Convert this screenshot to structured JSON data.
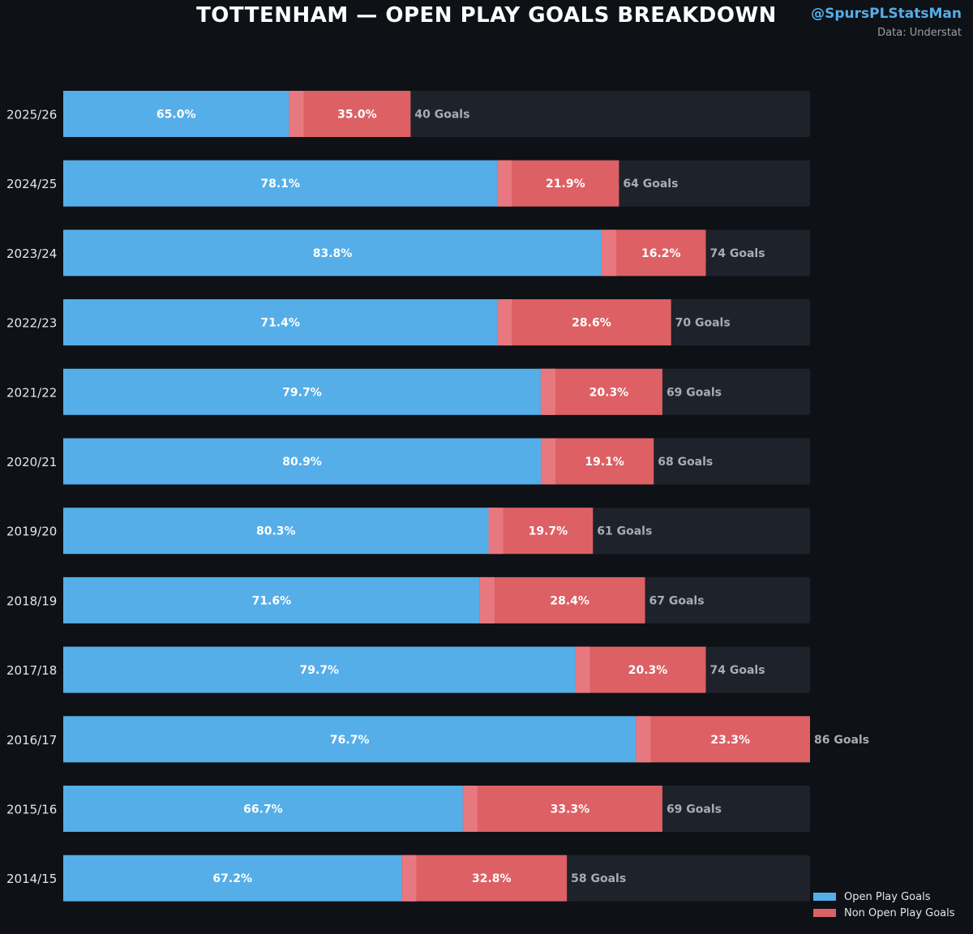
{
  "header": {
    "title": "TOTTENHAM — OPEN PLAY GOALS BREAKDOWN",
    "handle": "@SpursPLStatsMan",
    "source": "Data: Understat"
  },
  "colors": {
    "background": "#0e1116",
    "track": "#1e222b",
    "open_play": "#55aee8",
    "non_open_play": "#dd6064",
    "seam": "#e77880",
    "goals_label": "#a8acb3"
  },
  "legend": {
    "position": "bottom-right",
    "items": [
      {
        "label": "Open Play Goals",
        "color": "#55aee8"
      },
      {
        "label": "Non Open Play Goals",
        "color": "#dd6064"
      }
    ]
  },
  "chart_data": {
    "type": "bar",
    "orientation": "horizontal",
    "stacked": true,
    "title": "TOTTENHAM — OPEN PLAY GOALS BREAKDOWN",
    "categories": [
      "2025/26",
      "2024/25",
      "2023/24",
      "2022/23",
      "2021/22",
      "2020/21",
      "2019/20",
      "2018/19",
      "2017/18",
      "2016/17",
      "2015/16",
      "2014/15"
    ],
    "totals": [
      40,
      64,
      74,
      70,
      69,
      68,
      61,
      67,
      74,
      86,
      69,
      58
    ],
    "total_labels": [
      "40 Goals",
      "64 Goals",
      "74 Goals",
      "70 Goals",
      "69 Goals",
      "68 Goals",
      "61 Goals",
      "67 Goals",
      "74 Goals",
      "86 Goals",
      "69 Goals",
      "58 Goals"
    ],
    "xlim": [
      0,
      86
    ],
    "grid": false,
    "series": [
      {
        "name": "Open Play Goals",
        "percent": [
          65.0,
          78.1,
          83.8,
          71.4,
          79.7,
          80.9,
          80.3,
          71.6,
          79.7,
          76.7,
          66.7,
          67.2
        ],
        "percent_labels": [
          "65.0%",
          "78.1%",
          "83.8%",
          "71.4%",
          "79.7%",
          "80.9%",
          "80.3%",
          "71.6%",
          "79.7%",
          "76.7%",
          "66.7%",
          "67.2%"
        ]
      },
      {
        "name": "Non Open Play Goals",
        "percent": [
          35.0,
          21.9,
          16.2,
          28.6,
          20.3,
          19.1,
          19.7,
          28.4,
          20.3,
          23.3,
          33.3,
          32.8
        ],
        "percent_labels": [
          "35.0%",
          "21.9%",
          "16.2%",
          "28.6%",
          "20.3%",
          "19.1%",
          "19.7%",
          "28.4%",
          "20.3%",
          "23.3%",
          "33.3%",
          "32.8%"
        ]
      }
    ]
  }
}
